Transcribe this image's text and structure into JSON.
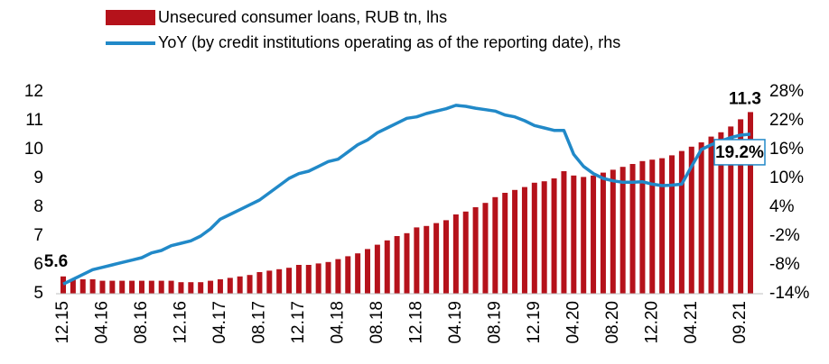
{
  "chart_data": {
    "type": "bar_line",
    "categories": [
      "12.15",
      null,
      null,
      null,
      "04.16",
      null,
      null,
      null,
      "08.16",
      null,
      null,
      null,
      "12.16",
      null,
      null,
      null,
      "04.17",
      null,
      null,
      null,
      "08.17",
      null,
      null,
      null,
      "12.17",
      null,
      null,
      null,
      "04.18",
      null,
      null,
      null,
      "08.18",
      null,
      null,
      null,
      "12.18",
      null,
      null,
      null,
      "04.19",
      null,
      null,
      null,
      "08.19",
      null,
      null,
      null,
      "12.19",
      null,
      null,
      null,
      "04.20",
      null,
      null,
      null,
      "08.20",
      null,
      null,
      null,
      "12.20",
      null,
      null,
      null,
      "04.21",
      null,
      null,
      null,
      null,
      "09.21",
      null
    ],
    "series": [
      {
        "name": "Unsecured consumer loans, RUB tn, lhs",
        "color": "#b5121b",
        "type": "bar",
        "values": [
          5.6,
          5.5,
          5.5,
          5.5,
          5.45,
          5.45,
          5.45,
          5.45,
          5.45,
          5.45,
          5.45,
          5.45,
          5.4,
          5.4,
          5.4,
          5.45,
          5.5,
          5.55,
          5.6,
          5.65,
          5.75,
          5.8,
          5.85,
          5.9,
          6.0,
          6.0,
          6.05,
          6.1,
          6.2,
          6.3,
          6.4,
          6.55,
          6.7,
          6.85,
          7.0,
          7.1,
          7.3,
          7.35,
          7.45,
          7.55,
          7.75,
          7.85,
          8.0,
          8.15,
          8.35,
          8.5,
          8.6,
          8.7,
          8.85,
          8.9,
          9.0,
          9.25,
          9.1,
          9.05,
          9.1,
          9.2,
          9.3,
          9.4,
          9.5,
          9.6,
          9.65,
          9.7,
          9.8,
          9.95,
          10.1,
          10.25,
          10.45,
          10.6,
          10.8,
          11.05,
          11.3
        ]
      },
      {
        "name": "YoY (by credit institutions operating as of the reporting date), rhs",
        "color": "#2189c8",
        "type": "line",
        "axis": "y2",
        "values": [
          -12,
          -11,
          -10,
          -9,
          -8.5,
          -8,
          -7.5,
          -7,
          -6.5,
          -5.5,
          -5,
          -4,
          -3.5,
          -3,
          -2,
          -0.5,
          1.5,
          2.5,
          3.5,
          4.5,
          5.5,
          7,
          8.5,
          10,
          11,
          11.5,
          12.5,
          13.5,
          14,
          15.5,
          17,
          18,
          19.5,
          20.5,
          21.5,
          22.5,
          22.8,
          23.5,
          24,
          24.5,
          25.2,
          25,
          24.6,
          24.3,
          24,
          23.2,
          22.8,
          22,
          21,
          20.5,
          20,
          20,
          15,
          12.5,
          11,
          10,
          9.5,
          9.2,
          9.2,
          9.3,
          8.8,
          8.5,
          8.6,
          8.8,
          12.5,
          16,
          17,
          17.8,
          18.5,
          19,
          19.2
        ],
        "value_labels": [
          null,
          null,
          null,
          null,
          null,
          null,
          null,
          null,
          null,
          null,
          null,
          null,
          null,
          null,
          null,
          null,
          null,
          null,
          null,
          null,
          null,
          null,
          null,
          null,
          null,
          null,
          null,
          null,
          null,
          null,
          null,
          null,
          null,
          null,
          null,
          null,
          null,
          null,
          null,
          null,
          null,
          null,
          null,
          null,
          null,
          null,
          null,
          null,
          null,
          null,
          null,
          null,
          null,
          null,
          null,
          null,
          null,
          null,
          null,
          null,
          null,
          null,
          null,
          null,
          null,
          null,
          null,
          null,
          null,
          null,
          "19.2%"
        ]
      }
    ],
    "ylim": [
      5,
      12
    ],
    "yticks": [
      5,
      6,
      7,
      8,
      9,
      10,
      11,
      12
    ],
    "y2lim": [
      -14,
      28
    ],
    "y2ticks": [
      {
        "value": -14,
        "label": "-14%"
      },
      {
        "value": -8,
        "label": "-8%"
      },
      {
        "value": -2,
        "label": "-2%"
      },
      {
        "value": 4,
        "label": "4%"
      },
      {
        "value": 10,
        "label": "10%"
      },
      {
        "value": 16,
        "label": "16%"
      },
      {
        "value": 22,
        "label": "22%"
      },
      {
        "value": 28,
        "label": "28%"
      }
    ]
  }
}
